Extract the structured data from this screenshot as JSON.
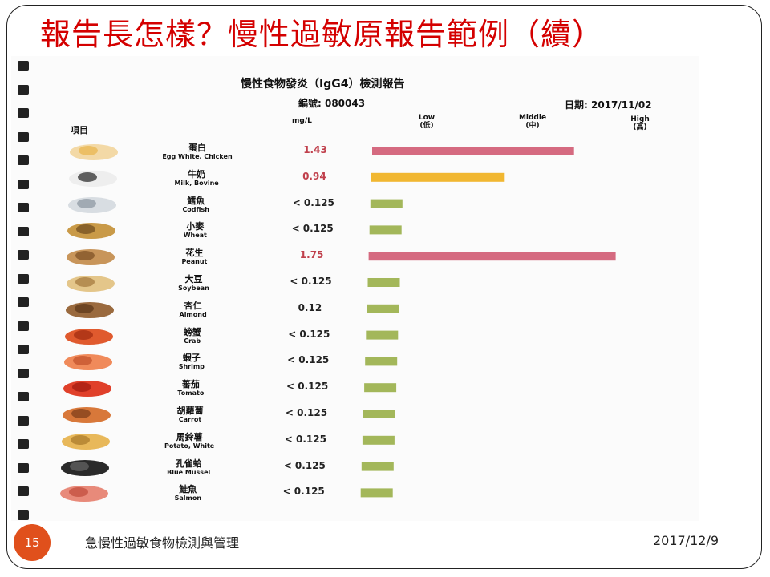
{
  "slide": {
    "title": "報告長怎樣？慢性過敏原報告範例（續）",
    "page_number": "15",
    "footer_text": "急慢性過敏食物檢測與管理",
    "footer_date": "2017/12/9"
  },
  "report": {
    "title": "慢性食物發炎（IgG4）檢測報告",
    "number_label": "編號: 080043",
    "date_label": "日期: 2017/11/02",
    "col_item": "項目",
    "col_unit": "mg/L",
    "scale_low": "Low",
    "scale_low_zh": "(低)",
    "scale_mid": "Middle",
    "scale_mid_zh": "(中)",
    "scale_high": "High",
    "scale_high_zh": "(高)"
  },
  "chart_data": {
    "type": "bar",
    "orientation": "horizontal",
    "categories": [
      {
        "zh": "蛋白",
        "en": "Egg White, Chicken",
        "value_label": "1.43",
        "value": 1.43,
        "color": "#d56a80",
        "icon": "egg-icon"
      },
      {
        "zh": "牛奶",
        "en": "Milk, Bovine",
        "value_label": "0.94",
        "value": 0.94,
        "color": "#f1b731",
        "icon": "milk-icon"
      },
      {
        "zh": "鱈魚",
        "en": "Codfish",
        "value_label": "< 0.125",
        "value": 0.125,
        "color": "#a3b75a",
        "icon": "fish-icon"
      },
      {
        "zh": "小麥",
        "en": "Wheat",
        "value_label": "< 0.125",
        "value": 0.125,
        "color": "#a3b75a",
        "icon": "wheat-icon"
      },
      {
        "zh": "花生",
        "en": "Peanut",
        "value_label": "1.75",
        "value": 1.75,
        "color": "#d56a80",
        "icon": "peanut-icon"
      },
      {
        "zh": "大豆",
        "en": "Soybean",
        "value_label": "< 0.125",
        "value": 0.125,
        "color": "#a3b75a",
        "icon": "soybean-icon"
      },
      {
        "zh": "杏仁",
        "en": "Almond",
        "value_label": "0.12",
        "value": 0.12,
        "color": "#a3b75a",
        "icon": "almond-icon"
      },
      {
        "zh": "螃蟹",
        "en": "Crab",
        "value_label": "< 0.125",
        "value": 0.125,
        "color": "#a3b75a",
        "icon": "crab-icon"
      },
      {
        "zh": "蝦子",
        "en": "Shrimp",
        "value_label": "< 0.125",
        "value": 0.125,
        "color": "#a3b75a",
        "icon": "shrimp-icon"
      },
      {
        "zh": "蕃茄",
        "en": "Tomato",
        "value_label": "< 0.125",
        "value": 0.125,
        "color": "#a3b75a",
        "icon": "tomato-icon"
      },
      {
        "zh": "胡蘿蔔",
        "en": "Carrot",
        "value_label": "< 0.125",
        "value": 0.125,
        "color": "#a3b75a",
        "icon": "carrot-icon"
      },
      {
        "zh": "馬鈴薯",
        "en": "Potato, White",
        "value_label": "< 0.125",
        "value": 0.125,
        "color": "#a3b75a",
        "icon": "potato-icon"
      },
      {
        "zh": "孔雀蛤",
        "en": "Blue Mussel",
        "value_label": "< 0.125",
        "value": 0.125,
        "color": "#a3b75a",
        "icon": "mussel-icon"
      },
      {
        "zh": "鮭魚",
        "en": "Salmon",
        "value_label": "< 0.125",
        "value": 0.125,
        "color": "#a3b75a",
        "icon": "salmon-icon"
      }
    ],
    "title": "慢性食物發炎（IgG4）檢測報告",
    "xlabel": "mg/L",
    "xlim": [
      0,
      1.75
    ],
    "grid": false,
    "legend": "none"
  }
}
